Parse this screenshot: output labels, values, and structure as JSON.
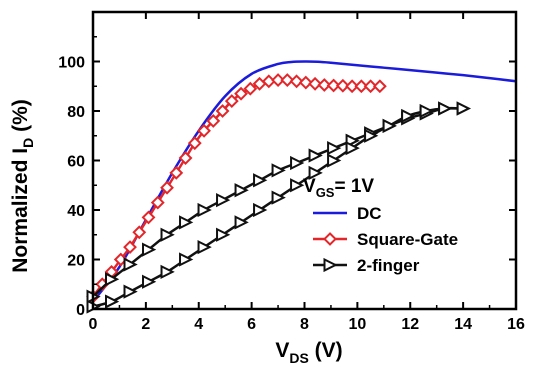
{
  "chart_data": {
    "type": "line",
    "title": "",
    "xlabel": {
      "main": "V",
      "sub": "DS",
      "unit": " (V)"
    },
    "ylabel": {
      "main": "Normalized I",
      "sub": "D",
      "unit": " (%)"
    },
    "xlim": [
      0,
      16
    ],
    "ylim": [
      0,
      120
    ],
    "xticks": [
      0,
      2,
      4,
      6,
      8,
      10,
      12,
      14,
      16
    ],
    "yticks": [
      0,
      20,
      40,
      60,
      80,
      100
    ],
    "grid": false,
    "legend_position": "center-right",
    "condition": {
      "main": "V",
      "sub": "GS",
      "rest": "= 1V"
    },
    "colors": {
      "dc": "#1b1bdc",
      "square_gate": "#e3262a",
      "two_finger": "#111111"
    },
    "series": [
      {
        "name": "DC",
        "marker": "none",
        "x": [
          0,
          1,
          2,
          3,
          4,
          5,
          6,
          7,
          7.5,
          8,
          8.5,
          9,
          10,
          11,
          12,
          13,
          14,
          15,
          16
        ],
        "y": [
          3,
          17,
          36,
          55,
          72,
          86,
          95,
          99,
          99.8,
          100,
          99.9,
          99.5,
          98.5,
          97.5,
          96.5,
          95.5,
          94.5,
          93.3,
          92
        ]
      },
      {
        "name": "Square-Gate",
        "marker": "diamond",
        "x": [
          0,
          0.35,
          0.7,
          1.05,
          1.4,
          1.75,
          2.1,
          2.45,
          2.8,
          3.15,
          3.5,
          3.85,
          4.2,
          4.55,
          4.9,
          5.25,
          5.6,
          5.95,
          6.3,
          6.65,
          7.0,
          7.35,
          7.7,
          8.05,
          8.4,
          8.75,
          9.1,
          9.45,
          9.8,
          10.15,
          10.5,
          10.85
        ],
        "y": [
          5,
          10,
          15,
          20,
          25,
          31,
          37,
          43,
          49,
          55,
          61,
          67,
          72,
          76,
          80,
          84,
          87,
          89,
          91,
          92,
          92.5,
          92.5,
          92,
          91.5,
          91,
          90.5,
          90.3,
          90.2,
          90,
          90,
          90,
          90
        ]
      },
      {
        "name": "2-finger",
        "marker": "triangle-right",
        "x": [
          0,
          0.7,
          1.4,
          2.1,
          2.8,
          3.5,
          4.2,
          4.9,
          5.6,
          6.3,
          7.0,
          7.7,
          8.4,
          9.1,
          9.8,
          10.5,
          11.2,
          11.9,
          12.6,
          13.3,
          14.0
        ],
        "y": [
          5,
          12,
          18,
          24,
          30,
          35,
          40,
          44,
          48,
          52,
          56,
          59,
          62,
          65,
          68,
          71,
          74,
          77,
          79,
          81,
          81
        ],
        "x2": [
          0,
          0.7,
          1.4,
          2.1,
          2.8,
          3.5,
          4.2,
          4.9,
          5.6,
          6.3,
          7.0,
          7.7,
          8.4,
          9.1,
          9.8,
          10.5,
          11.2,
          11.9,
          12.6,
          13.3,
          14.0
        ],
        "y2": [
          1,
          3,
          7,
          11,
          15,
          20,
          25,
          30,
          35,
          40,
          45,
          50,
          55,
          60,
          65,
          70,
          74,
          78,
          80,
          81,
          81
        ]
      }
    ]
  }
}
